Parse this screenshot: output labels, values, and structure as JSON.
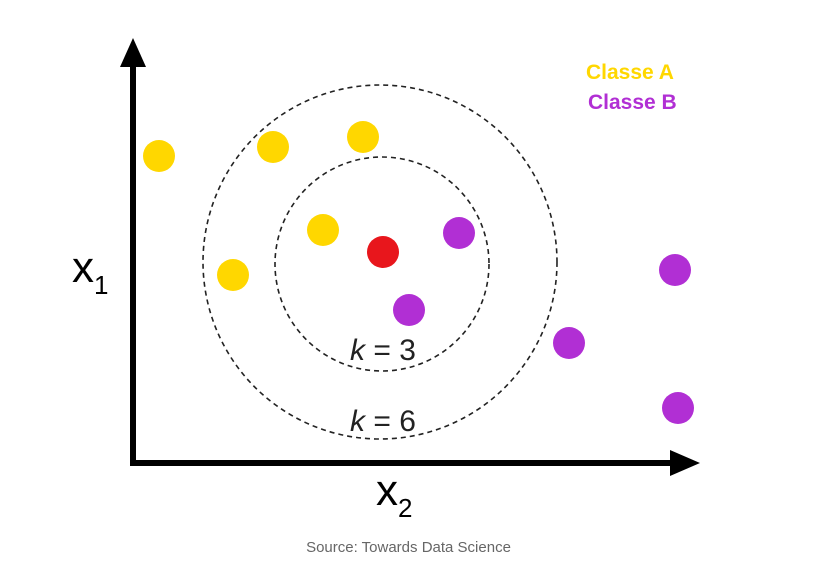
{
  "axes": {
    "y_label": "x",
    "y_subscript": "1",
    "x_label": "x",
    "x_subscript": "2"
  },
  "legend": [
    {
      "label": "Classe A",
      "color": "#FFD700"
    },
    {
      "label": "Classe B",
      "color": "#B12FD4"
    }
  ],
  "query_point": {
    "color": "#E8161C"
  },
  "neighborhoods": [
    {
      "k_prefix": "k",
      "k_suffix": " = 3",
      "k": 3
    },
    {
      "k_prefix": "k",
      "k_suffix": " = 6",
      "k": 6
    }
  ],
  "caption": "Source: Towards Data Science"
}
